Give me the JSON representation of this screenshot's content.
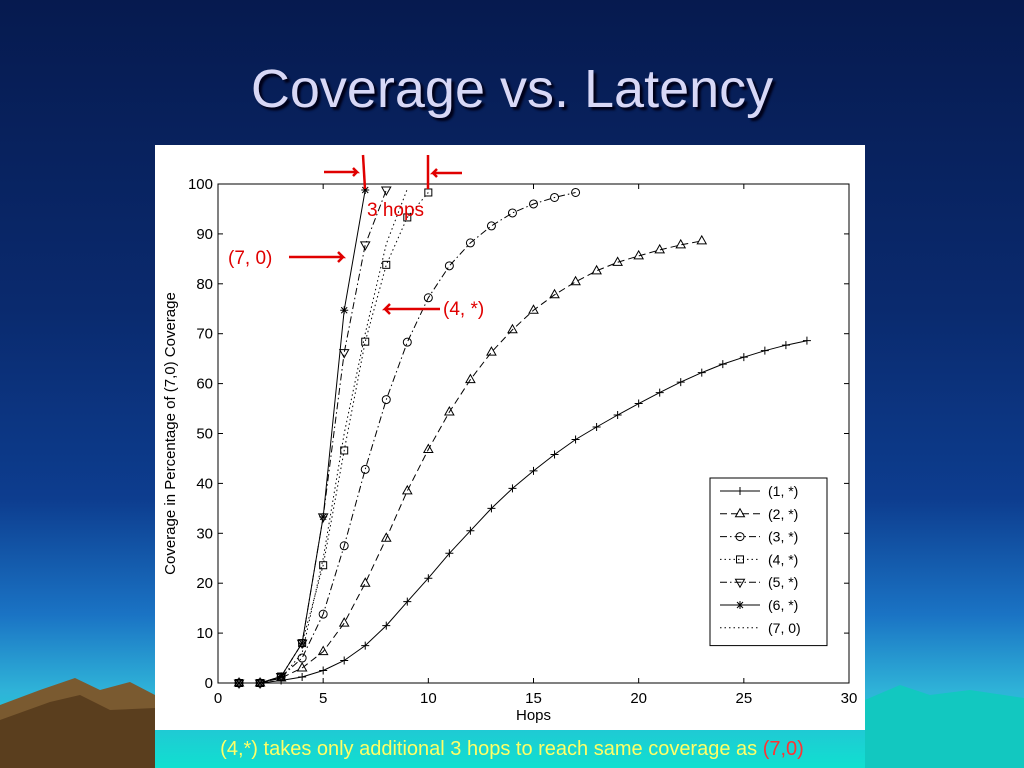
{
  "slide": {
    "title": "Coverage vs. Latency",
    "caption_part1": "(4,*) takes only additional 3 hops to reach  same coverage as ",
    "caption_part2": "(7,0)"
  },
  "colors": {
    "annotation": "#e00000",
    "caption": "#ffff66",
    "caption_highlight": "#ff3333",
    "title": "#d8d8f6"
  },
  "annotations": {
    "hops": "3 hops",
    "seven_zero": "(7, 0)",
    "four_star": "(4, *)"
  },
  "chart_data": {
    "type": "line",
    "title": "",
    "xlabel": "Hops",
    "ylabel": "Coverage in Percentage of (7,0) Coverage",
    "xlim": [
      0,
      30
    ],
    "ylim": [
      0,
      100
    ],
    "xticks": [
      0,
      5,
      10,
      15,
      20,
      25,
      30
    ],
    "yticks": [
      0,
      10,
      20,
      30,
      40,
      50,
      60,
      70,
      80,
      90,
      100
    ],
    "grid": false,
    "legend_position": "bottom-right",
    "series": [
      {
        "name": "(1, *)",
        "marker": "plus",
        "dash": "solid",
        "x": [
          1,
          2,
          3,
          4,
          5,
          6,
          7,
          8,
          9,
          10,
          11,
          12,
          13,
          14,
          15,
          16,
          17,
          18,
          19,
          20,
          21,
          22,
          23,
          24,
          25,
          26,
          27,
          28
        ],
        "y": [
          0,
          0,
          0.5,
          1.2,
          2.5,
          4.5,
          7.5,
          11.5,
          16.3,
          21,
          26,
          30.5,
          35,
          39,
          42.5,
          45.8,
          48.8,
          51.3,
          53.7,
          56,
          58.2,
          60.3,
          62.2,
          63.9,
          65.3,
          66.6,
          67.7,
          68.6
        ]
      },
      {
        "name": "(2, *)",
        "marker": "triangle-up",
        "dash": "dashed",
        "x": [
          1,
          2,
          3,
          4,
          5,
          6,
          7,
          8,
          9,
          10,
          11,
          12,
          13,
          14,
          15,
          16,
          17,
          18,
          19,
          20,
          21,
          22,
          23
        ],
        "y": [
          0,
          0,
          1,
          3,
          6.3,
          12,
          20,
          29,
          38.5,
          46.8,
          54.3,
          60.8,
          66.3,
          70.8,
          74.7,
          77.8,
          80.4,
          82.6,
          84.3,
          85.6,
          86.8,
          87.8,
          88.6
        ]
      },
      {
        "name": "(3, *)",
        "marker": "circle",
        "dash": "dashdot",
        "x": [
          1,
          2,
          3,
          4,
          5,
          6,
          7,
          8,
          9,
          10,
          11,
          12,
          13,
          14,
          15,
          16,
          17
        ],
        "y": [
          0,
          0,
          1.2,
          5,
          13.8,
          27.5,
          42.8,
          56.8,
          68.3,
          77.2,
          83.6,
          88.2,
          91.6,
          94.2,
          96,
          97.3,
          98.3
        ]
      },
      {
        "name": "(4, *)",
        "marker": "square",
        "dash": "dotted",
        "x": [
          1,
          2,
          3,
          4,
          5,
          6,
          7,
          8,
          9,
          10
        ],
        "y": [
          0,
          0,
          1.3,
          8,
          23.6,
          46.6,
          68.4,
          83.8,
          93.3,
          98.3
        ]
      },
      {
        "name": "(5, *)",
        "marker": "triangle-down",
        "dash": "dashdot",
        "x": [
          1,
          2,
          3,
          4,
          5,
          6,
          7,
          8
        ],
        "y": [
          0,
          0,
          1.3,
          8,
          33.3,
          66.2,
          87.8,
          98.8
        ]
      },
      {
        "name": "(6, *)",
        "marker": "star",
        "dash": "solid",
        "x": [
          1,
          2,
          3,
          4,
          5,
          6,
          7
        ],
        "y": [
          0,
          0,
          1.3,
          8,
          33.3,
          74.7,
          98.8
        ]
      },
      {
        "name": "(7, 0)",
        "marker": "none",
        "dash": "dotted",
        "x": [
          1,
          2,
          3,
          4,
          5,
          6,
          7,
          8,
          9
        ],
        "y": [
          0,
          0,
          1,
          6,
          25,
          50,
          70,
          88,
          99
        ]
      }
    ]
  }
}
